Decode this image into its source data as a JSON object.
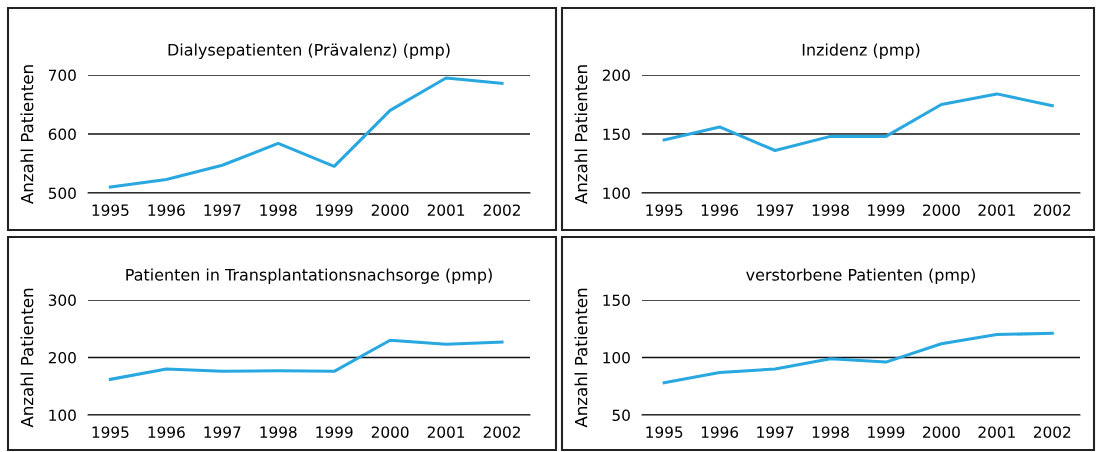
{
  "chart_data": [
    {
      "type": "line",
      "title": "Dialysepatienten (Prävalenz) (pmp)",
      "ylabel": "Anzahl Patienten",
      "categories": [
        "1995",
        "1996",
        "1997",
        "1998",
        "1999",
        "2000",
        "2001",
        "2002"
      ],
      "series": [
        {
          "color": "#29a8e0",
          "values": [
            510,
            523,
            547,
            584,
            545,
            640,
            695,
            686
          ]
        }
      ],
      "ylim": [
        500,
        700
      ],
      "yticks": [
        500,
        600,
        700
      ],
      "grid": "y",
      "marker": "none",
      "line_style": "solid"
    },
    {
      "type": "line",
      "title": "Inzidenz (pmp)",
      "ylabel": "Anzahl Patienten",
      "categories": [
        "1995",
        "1996",
        "1997",
        "1998",
        "1999",
        "2000",
        "2001",
        "2002"
      ],
      "series": [
        {
          "color": "#29a8e0",
          "values": [
            145,
            156,
            136,
            148,
            148,
            175,
            184,
            174
          ]
        }
      ],
      "ylim": [
        100,
        200
      ],
      "yticks": [
        100,
        150,
        200
      ],
      "grid": "y",
      "marker": "none",
      "line_style": "solid"
    },
    {
      "type": "line",
      "title": "Patienten in Transplantationsnachsorge (pmp)",
      "ylabel": "Anzahl Patienten",
      "categories": [
        "1995",
        "1996",
        "1997",
        "1998",
        "1999",
        "2000",
        "2001",
        "2002"
      ],
      "series": [
        {
          "color": "#29a8e0",
          "values": [
            162,
            180,
            176,
            177,
            176,
            230,
            223,
            227
          ]
        }
      ],
      "ylim": [
        100,
        300
      ],
      "yticks": [
        100,
        200,
        300
      ],
      "grid": "y",
      "marker": "none",
      "line_style": "solid"
    },
    {
      "type": "line",
      "title": "verstorbene Patienten (pmp)",
      "ylabel": "Anzahl Patienten",
      "categories": [
        "1995",
        "1996",
        "1997",
        "1998",
        "1999",
        "2000",
        "2001",
        "2002"
      ],
      "series": [
        {
          "color": "#29a8e0",
          "values": [
            78,
            87,
            90,
            99,
            96,
            112,
            120,
            121
          ]
        }
      ],
      "ylim": [
        50,
        150
      ],
      "yticks": [
        50,
        100,
        150
      ],
      "grid": "y",
      "marker": "none",
      "line_style": "solid"
    }
  ]
}
